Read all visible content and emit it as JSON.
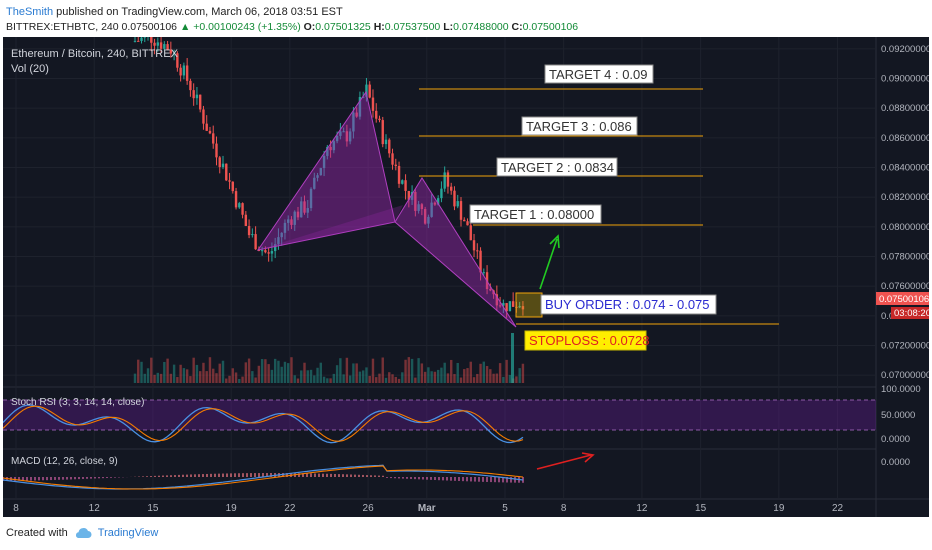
{
  "header": {
    "author": "TheSmith",
    "published": "published on TradingView.com, March 06, 2018 03:51 EST",
    "symbol_line": "BITTREX:ETHBTC, 240",
    "last": "0.07500106",
    "change": "+0.00100243 (+1.35%)",
    "open_label": "O:",
    "open": "0.07501325",
    "high_label": "H:",
    "high": "0.07537500",
    "low_label": "L:",
    "low": "0.07488000",
    "close_label": "C:",
    "close": "0.07500106"
  },
  "legend": {
    "title": "Ethereum / Bitcoin, 240, BITTREX",
    "vol": "Vol (20)",
    "stoch": "Stoch RSI (3, 3, 14, 14, close)",
    "macd": "MACD (12, 26, close, 9)"
  },
  "price_axis": {
    "ticks": [
      "0.09200000",
      "0.09000000",
      "0.08800000",
      "0.08600000",
      "0.08400000",
      "0.08200000",
      "0.08000000",
      "0.07800000",
      "0.07600000",
      "0.07500106",
      "0.07400000",
      "0.07200000",
      "0.07000000"
    ],
    "current_price": "0.07500106",
    "countdown": "03:08:20"
  },
  "stoch_axis": [
    "100.0000",
    "50.0000",
    "0.0000"
  ],
  "macd_axis": [
    "0.0000"
  ],
  "time_axis": [
    "8",
    "12",
    "15",
    "19",
    "22",
    "26",
    "Mar",
    "5",
    "8",
    "12",
    "15",
    "19",
    "22"
  ],
  "annotations": {
    "target4": "TARGET 4 : 0.09",
    "target3": "TARGET 3 : 0.086",
    "target2": "TARGET 2 : 0.0834",
    "target1": "TARGET 1 : 0.08000",
    "buy": "BUY ORDER : 0.074 - 0.075",
    "stop": "STOPLOSS : 0.0728"
  },
  "footer": {
    "created": "Created with",
    "brand": "TradingView"
  },
  "colors": {
    "background": "#131722",
    "up": "#26a69a",
    "down": "#ef5350",
    "pattern": "#9c27b0",
    "target_line": "#f0a30a",
    "arrow_green": "#22cc22",
    "arrow_red": "#e02020",
    "stop_bg": "#ffee00",
    "stop_text": "#e02020",
    "price_tag": "#ef5350"
  },
  "chart_data": {
    "type": "candlestick",
    "symbol": "BITTREX:ETHBTC",
    "timeframe": "240",
    "y_range": [
      0.0692,
      0.0928
    ],
    "targets": [
      {
        "label": "TARGET 4",
        "price": 0.09
      },
      {
        "label": "TARGET 3",
        "price": 0.086
      },
      {
        "label": "TARGET 2",
        "price": 0.0834
      },
      {
        "label": "TARGET 1",
        "price": 0.08
      }
    ],
    "buy_order": [
      0.074,
      0.075
    ],
    "stoploss": 0.0728,
    "pattern_points": [
      {
        "date": "Feb 21",
        "price": 0.0775
      },
      {
        "date": "Feb 26",
        "price": 0.0892
      },
      {
        "date": "Mar 1",
        "price": 0.0803
      },
      {
        "date": "Mar 2",
        "price": 0.0832
      },
      {
        "date": "Mar 5",
        "price": 0.0738
      }
    ],
    "price_path": [
      {
        "date": "Feb 14",
        "price": 0.0925
      },
      {
        "date": "Feb 15",
        "price": 0.0928
      },
      {
        "date": "Feb 16",
        "price": 0.092
      },
      {
        "date": "Feb 17",
        "price": 0.0895
      },
      {
        "date": "Feb 18",
        "price": 0.0862
      },
      {
        "date": "Feb 19",
        "price": 0.083
      },
      {
        "date": "Feb 20",
        "price": 0.0795
      },
      {
        "date": "Feb 21",
        "price": 0.078
      },
      {
        "date": "Feb 22",
        "price": 0.0805
      },
      {
        "date": "Feb 23",
        "price": 0.0815
      },
      {
        "date": "Feb 24",
        "price": 0.0855
      },
      {
        "date": "Feb 25",
        "price": 0.0862
      },
      {
        "date": "Feb 26",
        "price": 0.0892
      },
      {
        "date": "Feb 27",
        "price": 0.0855
      },
      {
        "date": "Feb 28",
        "price": 0.0825
      },
      {
        "date": "Mar 1",
        "price": 0.0808
      },
      {
        "date": "Mar 2",
        "price": 0.0832
      },
      {
        "date": "Mar 3",
        "price": 0.0805
      },
      {
        "date": "Mar 4",
        "price": 0.0765
      },
      {
        "date": "Mar 5",
        "price": 0.0747
      },
      {
        "date": "Mar 6",
        "price": 0.075
      }
    ]
  }
}
